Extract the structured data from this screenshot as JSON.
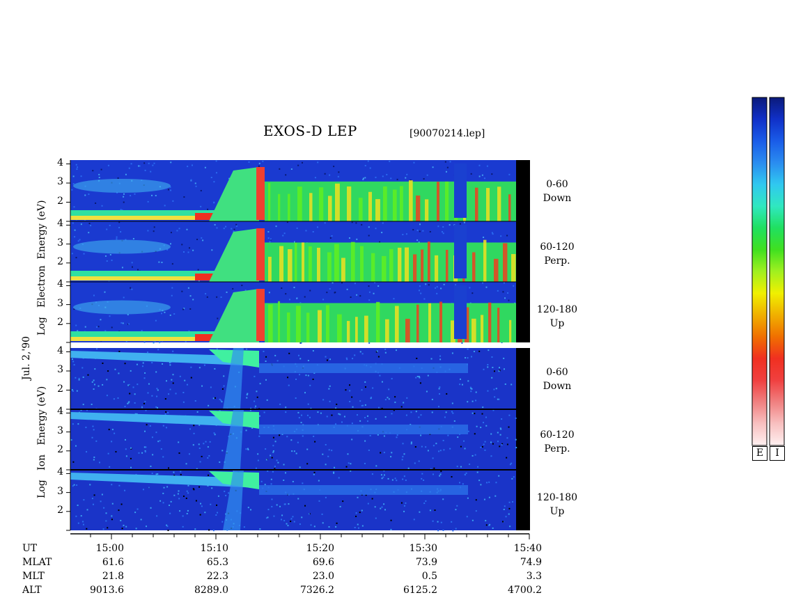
{
  "title": "EXOS-D LEP",
  "file_label": "[90070214.lep]",
  "date_label": "Jul. 2,'90",
  "electron": {
    "ylabel_parts": [
      "Log",
      "Electron",
      "Energy",
      "(eV)"
    ],
    "panels": [
      {
        "range": "0-60",
        "dir": "Down"
      },
      {
        "range": "60-120",
        "dir": "Perp."
      },
      {
        "range": "120-180",
        "dir": "Up"
      }
    ]
  },
  "ion": {
    "ylabel_parts": [
      "Log",
      "Ion",
      "Energy",
      "(eV)"
    ],
    "panels": [
      {
        "range": "0-60",
        "dir": "Down"
      },
      {
        "range": "60-120",
        "dir": "Perp."
      },
      {
        "range": "120-180",
        "dir": "Up"
      }
    ]
  },
  "yticks": [
    "4",
    "3",
    "2"
  ],
  "colorbar": {
    "electron_letter": "E",
    "ion_letter": "I",
    "colors": [
      "#0b1a7a",
      "#1030c8",
      "#1a5ce8",
      "#2a8cf0",
      "#30c8f0",
      "#30e8c0",
      "#20e060",
      "#40e020",
      "#a0f020",
      "#f0f000",
      "#f0b000",
      "#f07000",
      "#f03020",
      "#f04040",
      "#f08080",
      "#f8c0c0",
      "#fff0f0"
    ]
  },
  "ephemeris": {
    "rows": [
      {
        "name": "UT",
        "values": [
          "15:00",
          "15:10",
          "15:20",
          "15:30",
          "15:40"
        ]
      },
      {
        "name": "MLAT",
        "values": [
          "61.6",
          "65.3",
          "69.6",
          "73.9",
          "74.9"
        ]
      },
      {
        "name": "MLT",
        "values": [
          "21.8",
          "22.3",
          "23.0",
          "0.5",
          "3.3"
        ]
      },
      {
        "name": "ALT",
        "values": [
          "9013.6",
          "8289.0",
          "7326.2",
          "6125.2",
          "4700.2"
        ]
      }
    ]
  },
  "chart_data": {
    "type": "heatmap",
    "title": "EXOS-D LEP",
    "x_axis": {
      "name": "UT",
      "ticks": [
        "15:00",
        "15:10",
        "15:20",
        "15:30",
        "15:40"
      ]
    },
    "y_axis": {
      "name": "Log Energy (eV)",
      "ticks": [
        2,
        3,
        4
      ],
      "range": [
        1,
        4.2
      ]
    },
    "panels": [
      "Electron 0-60 Down",
      "Electron 60-120 Perp.",
      "Electron 120-180 Up",
      "Ion 0-60 Down",
      "Ion 60-120 Perp.",
      "Ion 120-180 Up"
    ]
  }
}
